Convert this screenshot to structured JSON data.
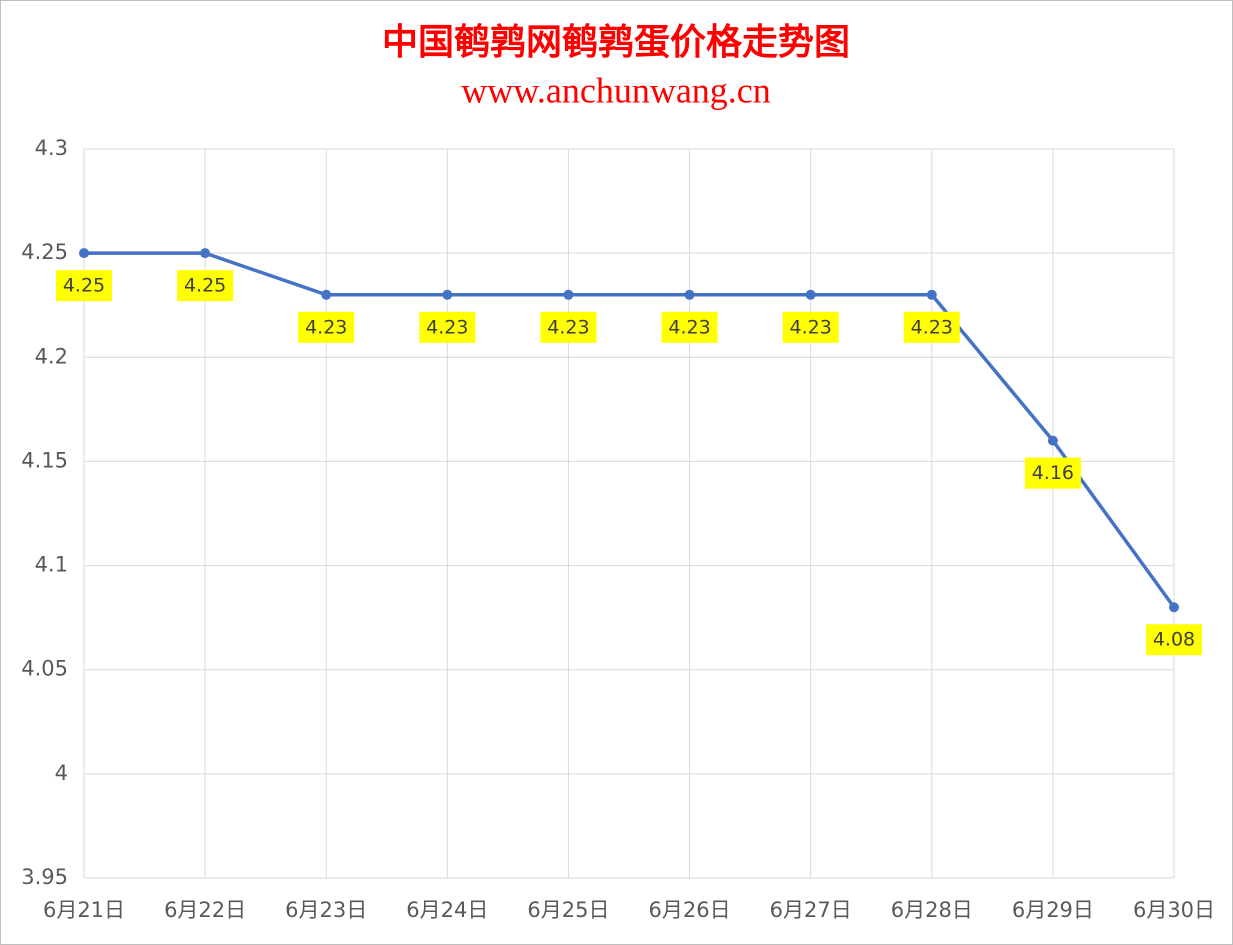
{
  "chart_data": {
    "type": "line",
    "title": "中国鹌鹑网鹌鹑蛋价格走势图",
    "subtitle": "www.anchunwang.cn",
    "categories": [
      "6月21日",
      "6月22日",
      "6月23日",
      "6月24日",
      "6月25日",
      "6月26日",
      "6月27日",
      "6月28日",
      "6月29日",
      "6月30日"
    ],
    "values": [
      4.25,
      4.25,
      4.23,
      4.23,
      4.23,
      4.23,
      4.23,
      4.23,
      4.16,
      4.08
    ],
    "color": "#4472c4",
    "label_background": "#ffff00",
    "ylim": [
      3.95,
      4.3
    ],
    "yticks": [
      3.95,
      4,
      4.05,
      4.1,
      4.15,
      4.2,
      4.25,
      4.3
    ],
    "grid": true
  }
}
